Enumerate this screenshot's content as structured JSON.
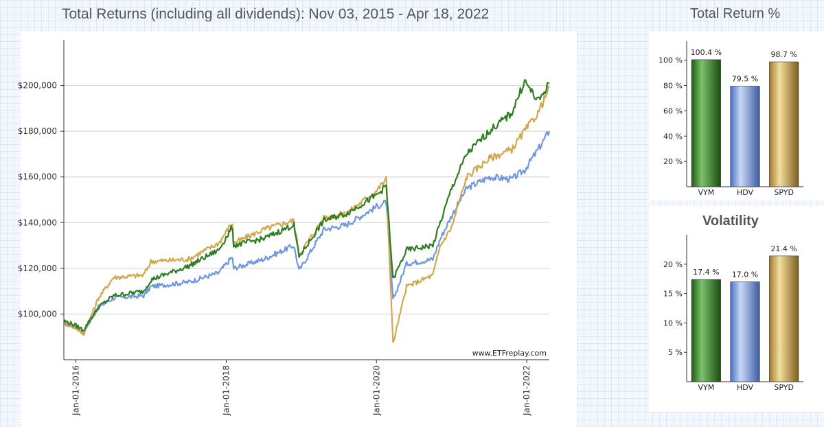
{
  "main": {
    "title": "Total Returns (including all dividends): Nov 03, 2015 - Apr 18, 2022",
    "watermark": "www.ETFreplay.com"
  },
  "returns_panel": {
    "title": "Total Return %"
  },
  "volatility_panel": {
    "title": "Volatility"
  },
  "colors": {
    "VYM": "#2e7d22",
    "HDV": "#6f97e0",
    "SPYD": "#d2a84e"
  },
  "chart_data": [
    {
      "type": "line",
      "title": "Total Returns (including all dividends): Nov 03, 2015 - Apr 18, 2022",
      "xlabel": "",
      "ylabel": "",
      "x_ticks": [
        "Jan-01-2016",
        "Jan-01-2018",
        "Jan-01-2020",
        "Jan-01-2022"
      ],
      "y_ticks": [
        "$100,000",
        "$120,000",
        "$140,000",
        "$160,000",
        "$180,000",
        "$200,000"
      ],
      "ylim": [
        80000,
        220000
      ],
      "grid": true,
      "x_format": "YYYY.fraction",
      "series": [
        {
          "name": "VYM",
          "x": [
            2015.84,
            2016.0,
            2016.1,
            2016.3,
            2016.5,
            2016.9,
            2017.0,
            2017.5,
            2017.9,
            2018.08,
            2018.1,
            2018.5,
            2018.9,
            2018.97,
            2019.3,
            2019.6,
            2020.0,
            2020.13,
            2020.22,
            2020.4,
            2020.75,
            2020.85,
            2021.0,
            2021.2,
            2021.5,
            2021.8,
            2021.97,
            2022.15,
            2022.3
          ],
          "values": [
            97000,
            95000,
            93000,
            103000,
            108000,
            110000,
            115000,
            121000,
            128000,
            138000,
            130000,
            133000,
            139000,
            125000,
            141000,
            144000,
            152000,
            156000,
            115000,
            128000,
            130000,
            140000,
            155000,
            170000,
            180000,
            188000,
            202000,
            193000,
            201000
          ]
        },
        {
          "name": "HDV",
          "x": [
            2015.84,
            2016.0,
            2016.1,
            2016.3,
            2016.5,
            2016.9,
            2017.0,
            2017.5,
            2017.9,
            2018.08,
            2018.1,
            2018.5,
            2018.9,
            2018.97,
            2019.3,
            2019.6,
            2020.0,
            2020.13,
            2020.22,
            2020.4,
            2020.75,
            2020.85,
            2021.0,
            2021.2,
            2021.5,
            2021.8,
            2021.97,
            2022.15,
            2022.3
          ],
          "values": [
            96000,
            94000,
            92000,
            103000,
            107000,
            108000,
            112000,
            114000,
            118000,
            125000,
            120000,
            124000,
            130000,
            119000,
            137000,
            139000,
            147000,
            149000,
            106000,
            122000,
            124000,
            133000,
            143000,
            155000,
            160000,
            159000,
            163000,
            172000,
            180000
          ]
        },
        {
          "name": "SPYD",
          "x": [
            2015.84,
            2016.0,
            2016.1,
            2016.3,
            2016.5,
            2016.9,
            2017.0,
            2017.5,
            2017.9,
            2018.08,
            2018.1,
            2018.5,
            2018.9,
            2018.97,
            2019.3,
            2019.6,
            2020.0,
            2020.13,
            2020.22,
            2020.4,
            2020.75,
            2020.85,
            2021.0,
            2021.2,
            2021.5,
            2021.8,
            2021.97,
            2022.15,
            2022.3
          ],
          "values": [
            96000,
            94000,
            91000,
            107000,
            116000,
            117000,
            123000,
            124000,
            131000,
            140000,
            131000,
            137000,
            141000,
            126000,
            142000,
            144000,
            154000,
            159000,
            87000,
            112000,
            117000,
            130000,
            138000,
            160000,
            168000,
            172000,
            180000,
            188000,
            199000
          ]
        }
      ]
    },
    {
      "type": "bar",
      "title": "Total Return %",
      "categories": [
        "VYM",
        "HDV",
        "SPYD"
      ],
      "values": [
        100.4,
        79.5,
        98.7
      ],
      "value_labels": [
        "100.4 %",
        "79.5 %",
        "98.7 %"
      ],
      "y_ticks": [
        "20 %",
        "40 %",
        "60 %",
        "80 %",
        "100 %"
      ],
      "ylim": [
        0,
        115
      ]
    },
    {
      "type": "bar",
      "title": "Volatility",
      "categories": [
        "VYM",
        "HDV",
        "SPYD"
      ],
      "values": [
        17.4,
        17.0,
        21.4
      ],
      "value_labels": [
        "17.4 %",
        "17.0 %",
        "21.4 %"
      ],
      "y_ticks": [
        "5 %",
        "10 %",
        "15 %",
        "20 %"
      ],
      "ylim": [
        0,
        25
      ]
    }
  ]
}
